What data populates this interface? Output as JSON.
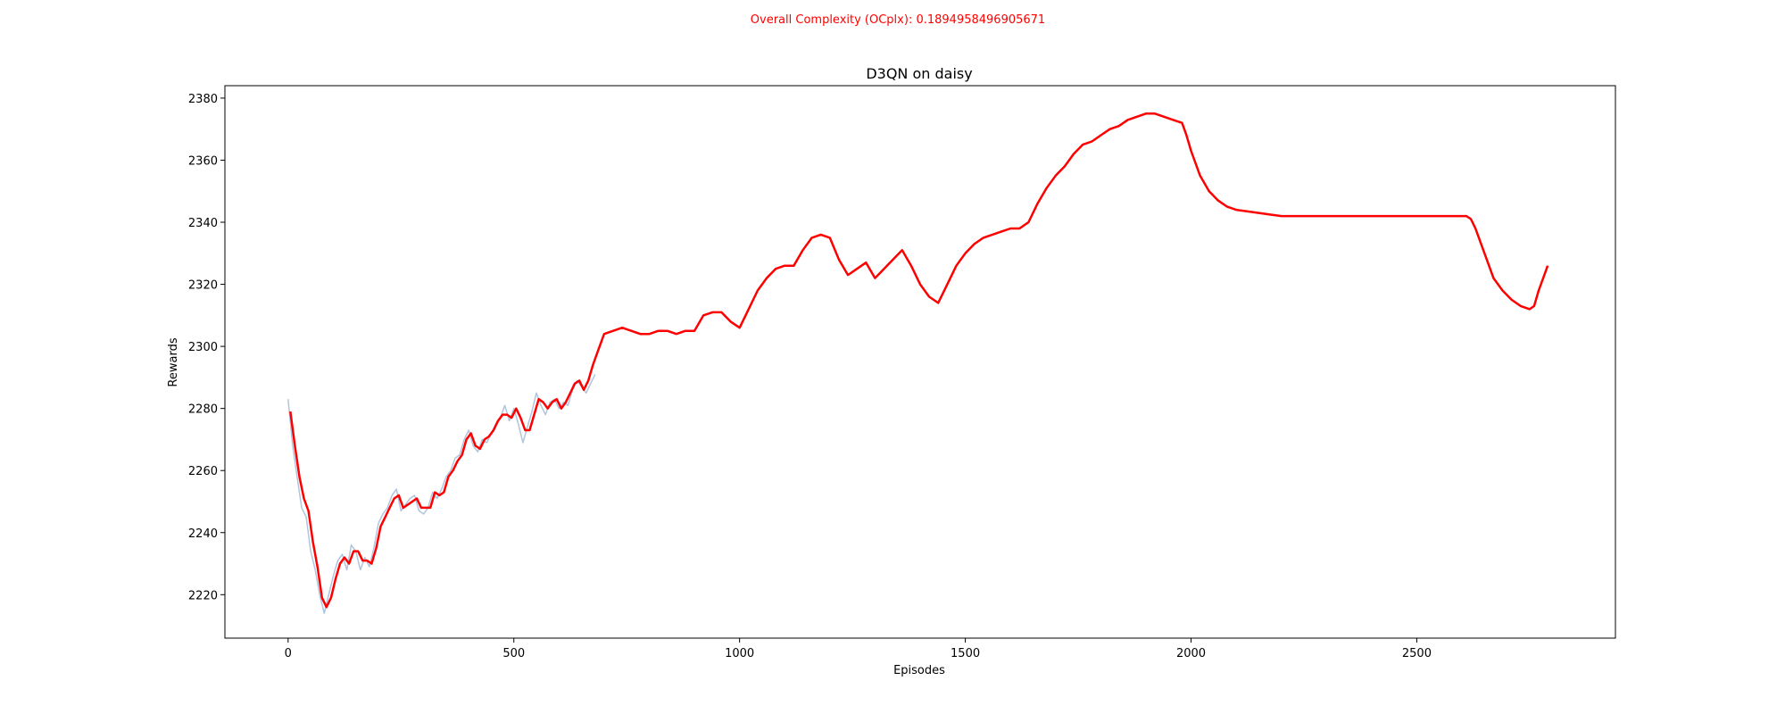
{
  "suptitle": "Overall Complexity (OCplx): 0.1894958496905671",
  "colors": {
    "smoothed": "#ff0000",
    "raw": "#b0c4de",
    "suptitle": "#ff0000"
  },
  "chart_data": {
    "type": "line",
    "title": "D3QN on daisy",
    "xlabel": "Episodes",
    "ylabel": "Rewards",
    "xlim": [
      -140,
      2940
    ],
    "ylim": [
      2206,
      2384
    ],
    "xticks": [
      0,
      500,
      1000,
      1500,
      2000,
      2500
    ],
    "yticks": [
      2220,
      2240,
      2260,
      2280,
      2300,
      2320,
      2340,
      2360,
      2380
    ],
    "grid": false,
    "series": [
      {
        "style": "raw",
        "x": [
          0,
          10,
          20,
          30,
          40,
          50,
          60,
          70,
          80,
          90,
          100,
          110,
          120,
          130,
          140,
          150,
          160,
          170,
          180,
          190,
          200,
          210,
          220,
          230,
          240,
          250,
          260,
          270,
          280,
          290,
          300,
          310,
          320,
          330,
          340,
          350,
          360,
          370,
          380,
          390,
          400,
          410,
          420,
          430,
          440,
          450,
          460,
          470,
          480,
          490,
          500,
          510,
          520,
          530,
          540,
          550,
          560,
          570,
          580,
          590,
          600,
          610,
          620,
          630,
          640,
          650,
          660,
          670,
          680
        ],
        "y": [
          2283,
          2268,
          2258,
          2248,
          2245,
          2234,
          2228,
          2220,
          2214,
          2220,
          2226,
          2231,
          2233,
          2228,
          2236,
          2234,
          2228,
          2232,
          2229,
          2235,
          2243,
          2246,
          2248,
          2252,
          2254,
          2247,
          2249,
          2251,
          2252,
          2247,
          2246,
          2248,
          2253,
          2251,
          2254,
          2258,
          2260,
          2264,
          2265,
          2270,
          2273,
          2268,
          2266,
          2270,
          2269,
          2272,
          2275,
          2277,
          2281,
          2276,
          2280,
          2275,
          2269,
          2274,
          2279,
          2285,
          2281,
          2278,
          2282,
          2283,
          2280,
          2282,
          2281,
          2286,
          2289,
          2287,
          2285,
          2288,
          2291
        ]
      },
      {
        "style": "smoothed",
        "x": [
          5,
          15,
          25,
          35,
          45,
          55,
          65,
          75,
          85,
          95,
          105,
          115,
          125,
          135,
          145,
          155,
          165,
          175,
          185,
          195,
          205,
          215,
          225,
          235,
          245,
          255,
          265,
          275,
          285,
          295,
          305,
          315,
          325,
          335,
          345,
          355,
          365,
          375,
          385,
          395,
          405,
          415,
          425,
          435,
          445,
          455,
          465,
          475,
          485,
          495,
          505,
          515,
          525,
          535,
          545,
          555,
          565,
          575,
          585,
          595,
          605,
          615,
          625,
          635,
          645,
          655,
          665,
          675,
          685,
          700,
          720,
          740,
          760,
          780,
          800,
          820,
          840,
          860,
          880,
          900,
          920,
          940,
          960,
          980,
          1000,
          1020,
          1040,
          1060,
          1080,
          1100,
          1120,
          1140,
          1160,
          1180,
          1200,
          1220,
          1240,
          1260,
          1280,
          1300,
          1320,
          1340,
          1360,
          1380,
          1400,
          1420,
          1440,
          1460,
          1480,
          1500,
          1520,
          1540,
          1560,
          1580,
          1600,
          1620,
          1640,
          1660,
          1680,
          1700,
          1720,
          1740,
          1760,
          1780,
          1800,
          1820,
          1840,
          1860,
          1880,
          1900,
          1920,
          1940,
          1960,
          1980,
          1990,
          2000,
          2020,
          2040,
          2060,
          2080,
          2100,
          2150,
          2200,
          2300,
          2400,
          2500,
          2600,
          2610,
          2620,
          2630,
          2650,
          2670,
          2690,
          2710,
          2730,
          2750,
          2760,
          2770,
          2780,
          2790
        ],
        "y": [
          2279,
          2268,
          2258,
          2251,
          2247,
          2237,
          2229,
          2219,
          2216,
          2219,
          2225,
          2230,
          2232,
          2230,
          2234,
          2234,
          2231,
          2231,
          2230,
          2235,
          2242,
          2245,
          2248,
          2251,
          2252,
          2248,
          2249,
          2250,
          2251,
          2248,
          2248,
          2248,
          2253,
          2252,
          2253,
          2258,
          2260,
          2263,
          2265,
          2270,
          2272,
          2268,
          2267,
          2270,
          2271,
          2273,
          2276,
          2278,
          2278,
          2277,
          2280,
          2277,
          2273,
          2273,
          2278,
          2283,
          2282,
          2280,
          2282,
          2283,
          2280,
          2282,
          2285,
          2288,
          2289,
          2286,
          2289,
          2294,
          2298,
          2304,
          2305,
          2306,
          2305,
          2304,
          2304,
          2305,
          2305,
          2304,
          2305,
          2305,
          2310,
          2311,
          2311,
          2308,
          2306,
          2312,
          2318,
          2322,
          2325,
          2326,
          2326,
          2331,
          2335,
          2336,
          2335,
          2328,
          2323,
          2325,
          2327,
          2322,
          2325,
          2328,
          2331,
          2326,
          2320,
          2316,
          2314,
          2320,
          2326,
          2330,
          2333,
          2335,
          2336,
          2337,
          2338,
          2338,
          2340,
          2346,
          2351,
          2355,
          2358,
          2362,
          2365,
          2366,
          2368,
          2370,
          2371,
          2373,
          2374,
          2375,
          2375,
          2374,
          2373,
          2372,
          2368,
          2363,
          2355,
          2350,
          2347,
          2345,
          2344,
          2343,
          2342,
          2342,
          2342,
          2342,
          2342,
          2342,
          2341,
          2338,
          2330,
          2322,
          2318,
          2315,
          2313,
          2312,
          2313,
          2318,
          2322,
          2326
        ]
      }
    ]
  }
}
